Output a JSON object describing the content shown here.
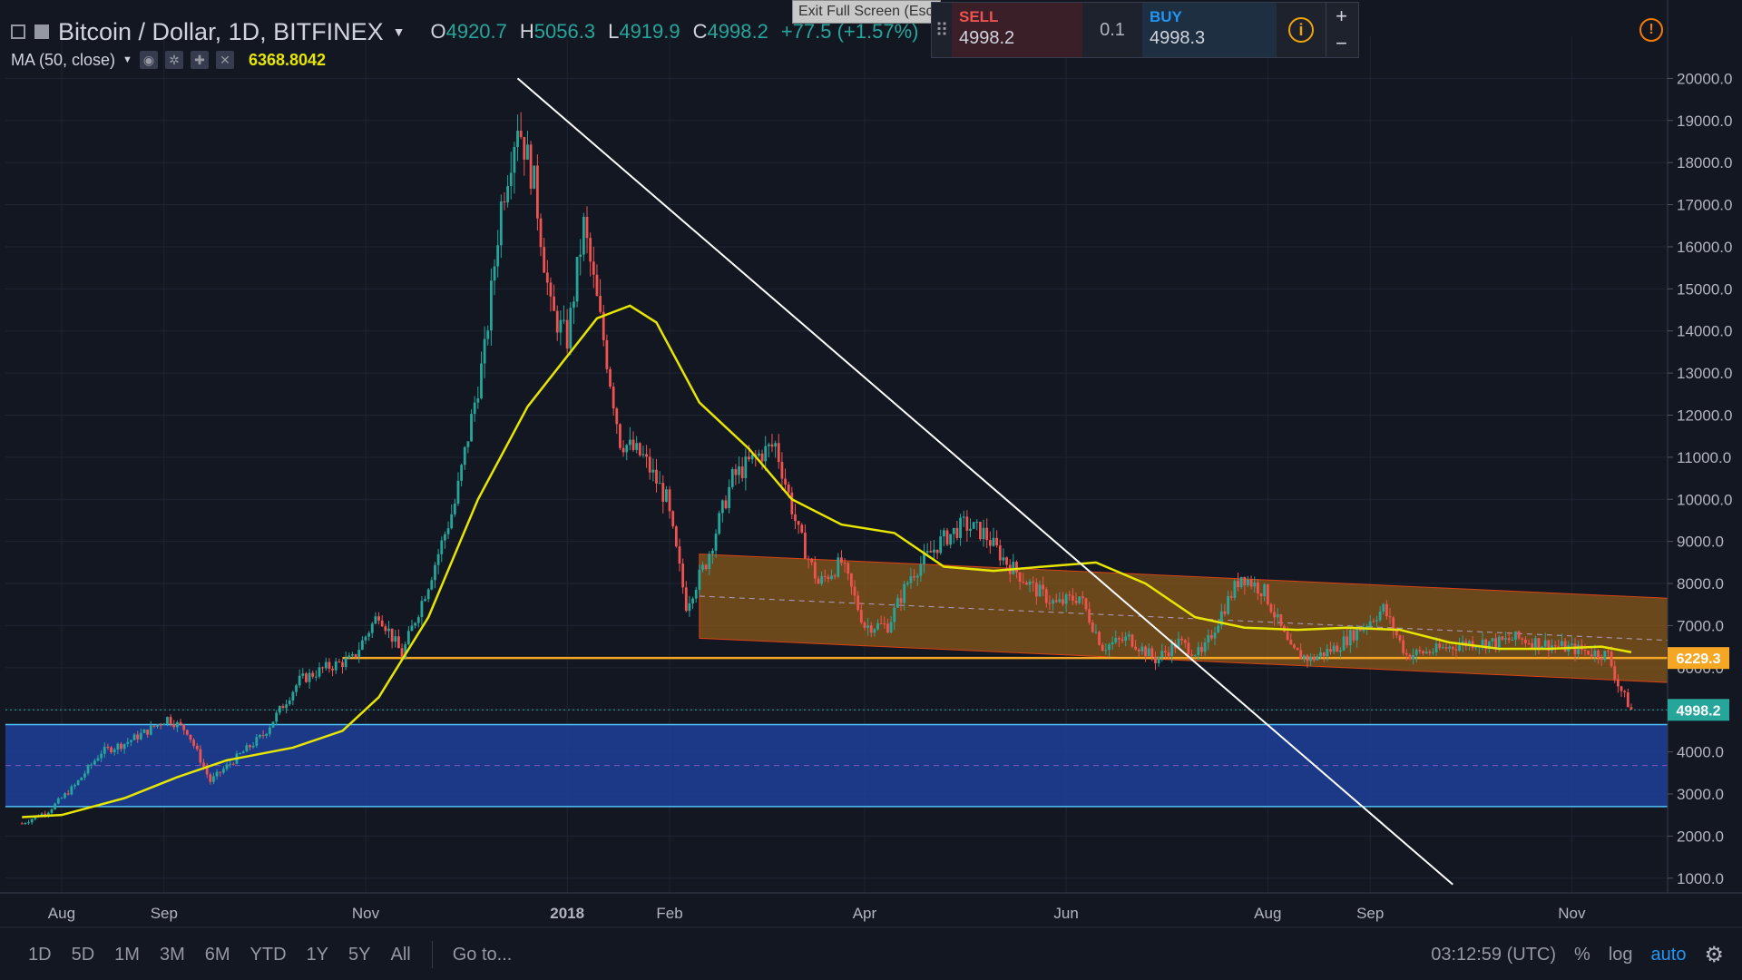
{
  "header": {
    "title": "Bitcoin / Dollar, 1D, BITFINEX",
    "ohlc": [
      {
        "k": "O",
        "v": "4920.7"
      },
      {
        "k": "H",
        "v": "5056.3"
      },
      {
        "k": "L",
        "v": "4919.9"
      },
      {
        "k": "C",
        "v": "4998.2"
      }
    ],
    "change": "+77.5 (+1.57%)"
  },
  "indicator": {
    "label": "MA (50, close)",
    "value": "6368.8042"
  },
  "trade_panel": {
    "sell_label": "SELL",
    "sell_price": "4998.2",
    "qty": "0.1",
    "buy_label": "BUY",
    "buy_price": "4998.3",
    "plus": "+",
    "minus": "−"
  },
  "tooltip": "Exit Full Screen (Esc)",
  "footer": {
    "ranges": [
      "1D",
      "5D",
      "1M",
      "3M",
      "6M",
      "YTD",
      "1Y",
      "5Y",
      "All"
    ],
    "goto": "Go to...",
    "time": "03:12:59 (UTC)",
    "percent": "%",
    "log": "log",
    "auto": "auto"
  },
  "colors": {
    "up": "#26a69a",
    "down": "#ef5350",
    "ma": "#e6e600",
    "support": "#f5a623",
    "channel": "#8a5a1a",
    "zone": "#1e3f9a",
    "trend": "#ffffff"
  },
  "chart_data": {
    "type": "line",
    "title": "Bitcoin / Dollar, 1D, BITFINEX",
    "y_ticks": [
      "1000.0",
      "2000.0",
      "3000.0",
      "4000.0",
      "5000.0",
      "6000.0",
      "7000.0",
      "8000.0",
      "9000.0",
      "10000.0",
      "11000.0",
      "12000.0",
      "13000.0",
      "14000.0",
      "15000.0",
      "16000.0",
      "17000.0",
      "18000.0",
      "19000.0",
      "20000.0"
    ],
    "x_ticks": [
      "Aug",
      "Sep",
      "Nov",
      "2018",
      "Feb",
      "Apr",
      "Jun",
      "Aug",
      "Sep",
      "Nov"
    ],
    "ylim": [
      650,
      21000
    ],
    "series": [
      {
        "name": "Bitcoin / Dollar",
        "x": [
          "2017-07-20",
          "2017-07-28",
          "2017-08-05",
          "2017-08-13",
          "2017-08-20",
          "2017-08-27",
          "2017-09-02",
          "2017-09-08",
          "2017-09-15",
          "2017-09-22",
          "2017-10-01",
          "2017-10-12",
          "2017-10-20",
          "2017-10-28",
          "2017-11-05",
          "2017-11-12",
          "2017-11-20",
          "2017-11-28",
          "2017-12-07",
          "2017-12-12",
          "2017-12-17",
          "2017-12-22",
          "2017-12-27",
          "2018-01-01",
          "2018-01-06",
          "2018-01-12",
          "2018-01-17",
          "2018-01-24",
          "2018-01-31",
          "2018-02-06",
          "2018-02-12",
          "2018-02-20",
          "2018-02-27",
          "2018-03-05",
          "2018-03-12",
          "2018-03-18",
          "2018-03-25",
          "2018-04-01",
          "2018-04-08",
          "2018-04-15",
          "2018-04-24",
          "2018-05-01",
          "2018-05-07",
          "2018-05-14",
          "2018-05-22",
          "2018-05-29",
          "2018-06-05",
          "2018-06-12",
          "2018-06-20",
          "2018-06-28",
          "2018-07-05",
          "2018-07-12",
          "2018-07-18",
          "2018-07-24",
          "2018-07-31",
          "2018-08-08",
          "2018-08-14",
          "2018-08-22",
          "2018-08-30",
          "2018-09-05",
          "2018-09-12",
          "2018-09-20",
          "2018-10-01",
          "2018-10-10",
          "2018-10-15",
          "2018-10-25",
          "2018-11-05",
          "2018-11-12",
          "2018-11-15",
          "2018-11-19"
        ],
        "values": [
          2300,
          2600,
          3200,
          4000,
          4200,
          4500,
          4800,
          4500,
          3300,
          3800,
          4400,
          5700,
          6000,
          6200,
          7300,
          6300,
          8000,
          9900,
          13500,
          17000,
          19000,
          17500,
          14500,
          13800,
          16500,
          13800,
          11400,
          11000,
          10000,
          7500,
          8500,
          10500,
          11000,
          11300,
          9200,
          8000,
          8500,
          7000,
          7000,
          8200,
          9000,
          9400,
          9200,
          8500,
          7900,
          7500,
          7700,
          6500,
          6700,
          6200,
          6600,
          6300,
          7300,
          8200,
          7800,
          6400,
          6200,
          6500,
          7000,
          7400,
          6300,
          6400,
          6600,
          6600,
          6700,
          6550,
          6400,
          6300,
          5600,
          4998.2
        ]
      },
      {
        "name": "MA (50, close)",
        "x": [
          "2017-07-20",
          "2017-08-01",
          "2017-08-20",
          "2017-09-05",
          "2017-09-20",
          "2017-10-10",
          "2017-10-25",
          "2017-11-05",
          "2017-11-20",
          "2017-12-05",
          "2017-12-20",
          "2018-01-01",
          "2018-01-10",
          "2018-01-20",
          "2018-01-28",
          "2018-02-10",
          "2018-02-25",
          "2018-03-10",
          "2018-03-25",
          "2018-04-10",
          "2018-04-25",
          "2018-05-10",
          "2018-05-25",
          "2018-06-10",
          "2018-06-25",
          "2018-07-10",
          "2018-07-25",
          "2018-08-10",
          "2018-08-25",
          "2018-09-10",
          "2018-09-25",
          "2018-10-10",
          "2018-10-25",
          "2018-11-10",
          "2018-11-19"
        ],
        "values": [
          2450,
          2500,
          2900,
          3400,
          3800,
          4100,
          4500,
          5300,
          7200,
          10000,
          12200,
          13400,
          14300,
          14600,
          14200,
          12300,
          11200,
          10000,
          9400,
          9200,
          8400,
          8300,
          8400,
          8500,
          8000,
          7200,
          6950,
          6900,
          6950,
          6900,
          6600,
          6450,
          6450,
          6500,
          6368.8
        ]
      }
    ],
    "annotations": {
      "support_line": 6229.3,
      "last_price": 4998.2,
      "trendline": [
        {
          "x": "2017-12-17",
          "y": 20000
        },
        {
          "x": "2018-09-26",
          "y": 850
        }
      ],
      "channel": {
        "upper": [
          {
            "x": "2018-02-10",
            "y": 8700
          },
          {
            "x": "2018-11-30",
            "y": 7650
          }
        ],
        "lower": [
          {
            "x": "2018-02-10",
            "y": 6700
          },
          {
            "x": "2018-11-30",
            "y": 5650
          }
        ]
      },
      "zone": {
        "top": 4650,
        "bottom": 2700,
        "from": "2017-07-15",
        "to": "2018-11-30"
      }
    },
    "price_labels": [
      {
        "value": "6229.3",
        "color": "#f5a623"
      },
      {
        "value": "4998.2",
        "color": "#26a69a"
      }
    ],
    "grid": true
  }
}
